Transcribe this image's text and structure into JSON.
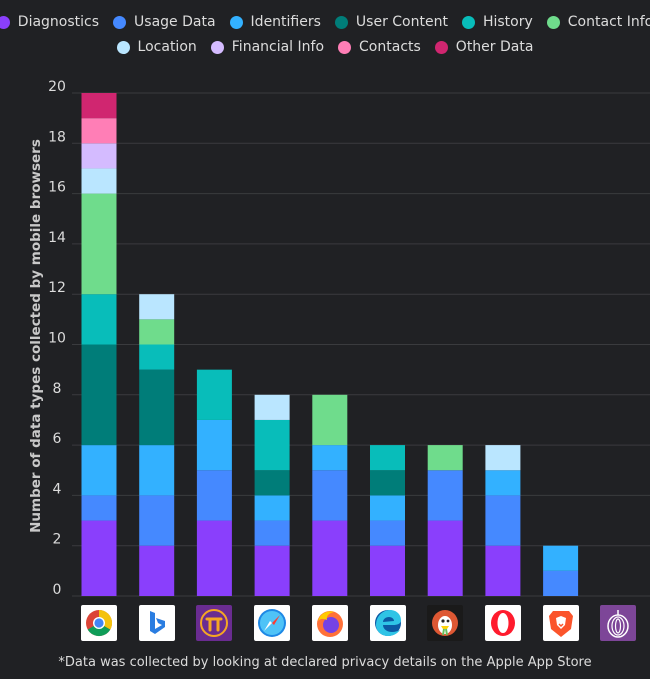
{
  "chart_data": {
    "type": "bar",
    "stacked": true,
    "ylabel": "Number of data types collected by mobile browsers",
    "ylim": [
      0,
      20
    ],
    "yticks": [
      0,
      2,
      4,
      6,
      8,
      10,
      12,
      14,
      16,
      18,
      20
    ],
    "legend_position": "top",
    "grid": true,
    "categories": [
      "Chrome",
      "Bing",
      "Pi Browser",
      "Safari",
      "Firefox",
      "Edge",
      "DuckDuckGo",
      "Opera",
      "Brave",
      "Tor Browser"
    ],
    "series": [
      {
        "name": "Diagnostics",
        "color": "#8a3ffc",
        "values": [
          3,
          2,
          3,
          2,
          3,
          2,
          3,
          2,
          0,
          0
        ]
      },
      {
        "name": "Usage Data",
        "color": "#4589ff",
        "values": [
          1,
          2,
          2,
          1,
          2,
          1,
          2,
          2,
          1,
          0
        ]
      },
      {
        "name": "Identifiers",
        "color": "#33b1ff",
        "values": [
          2,
          2,
          2,
          1,
          1,
          1,
          0,
          1,
          1,
          0
        ]
      },
      {
        "name": "User Content",
        "color": "#007d79",
        "values": [
          4,
          3,
          0,
          1,
          0,
          1,
          0,
          0,
          0,
          0
        ]
      },
      {
        "name": "History",
        "color": "#08bdba",
        "values": [
          2,
          1,
          2,
          2,
          0,
          1,
          0,
          0,
          0,
          0
        ]
      },
      {
        "name": "Contact Info",
        "color": "#6fdc8c",
        "values": [
          4,
          1,
          0,
          0,
          2,
          0,
          1,
          0,
          0,
          0
        ]
      },
      {
        "name": "Location",
        "color": "#bae6ff",
        "values": [
          1,
          1,
          0,
          1,
          0,
          0,
          0,
          1,
          0,
          0
        ]
      },
      {
        "name": "Financial Info",
        "color": "#d4bbff",
        "values": [
          1,
          0,
          0,
          0,
          0,
          0,
          0,
          0,
          0,
          0
        ]
      },
      {
        "name": "Contacts",
        "color": "#ff7eb6",
        "values": [
          1,
          0,
          0,
          0,
          0,
          0,
          0,
          0,
          0,
          0
        ]
      },
      {
        "name": "Other Data",
        "color": "#d02670",
        "values": [
          1,
          0,
          0,
          0,
          0,
          0,
          0,
          0,
          0,
          0
        ]
      }
    ],
    "footnote": "*Data was collected by looking at declared privacy details on the Apple App Store"
  },
  "icons": [
    "chrome-icon",
    "bing-icon",
    "pi-browser-icon",
    "safari-icon",
    "firefox-icon",
    "edge-icon",
    "duckduckgo-icon",
    "opera-icon",
    "brave-icon",
    "tor-icon"
  ],
  "colors": {
    "background": "#202124",
    "grid": "#3a3b3e",
    "text": "#dcdcdc"
  }
}
